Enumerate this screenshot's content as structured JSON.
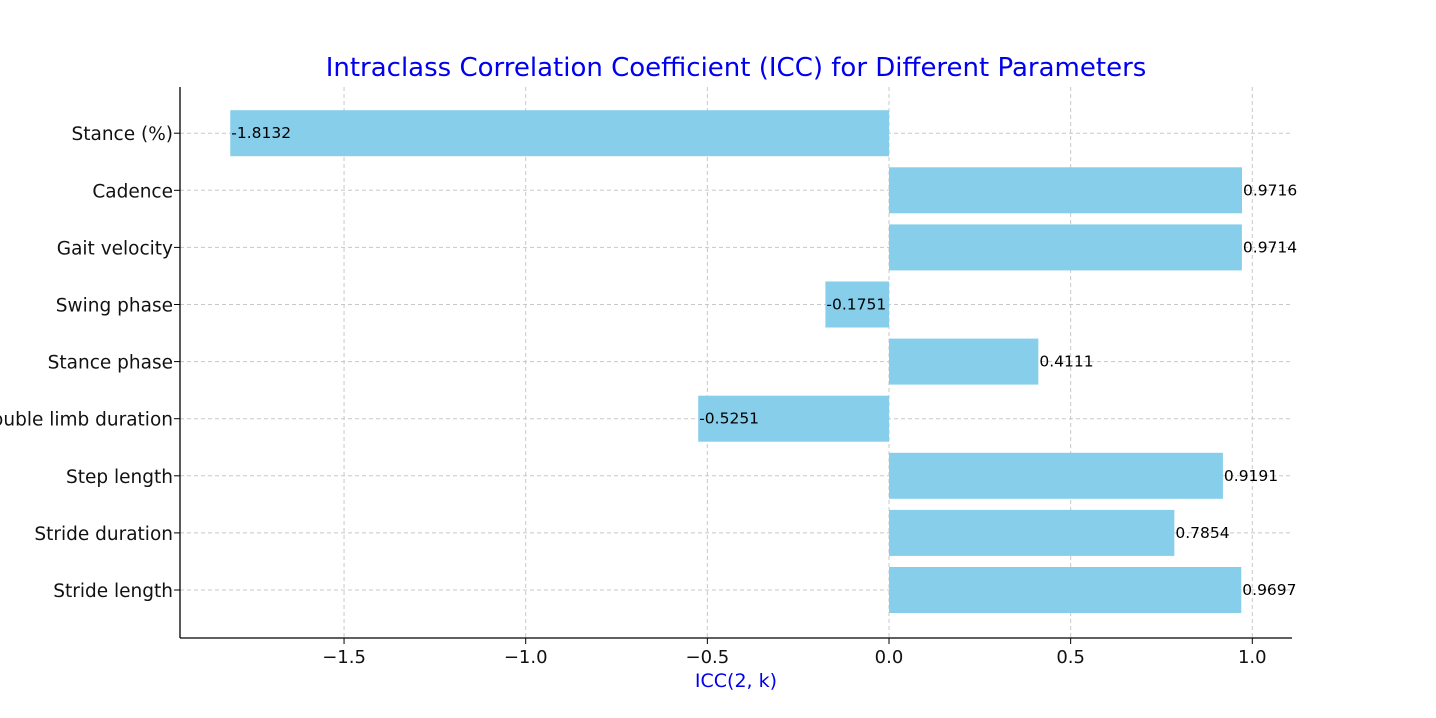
{
  "chart_data": {
    "type": "bar",
    "orientation": "horizontal",
    "title": "Intraclass Correlation Coefficient (ICC) for Different Parameters",
    "xlabel": "ICC(2, k)",
    "ylabel": "",
    "categories": [
      "Stride length",
      "Stride duration",
      "Step length",
      "Double limb duration",
      "Stance phase",
      "Swing phase",
      "Gait velocity",
      "Cadence",
      "Stance (%)"
    ],
    "values": [
      0.9697,
      0.7854,
      0.9191,
      -0.5251,
      0.4111,
      -0.1751,
      0.9714,
      0.9716,
      -1.8132
    ],
    "data_labels": [
      "0.9697",
      "0.7854",
      "0.9191",
      "-0.5251",
      "0.4111",
      "-0.1751",
      "0.9714",
      "0.9716",
      "-1.8132"
    ],
    "xticks": [
      -1.5,
      -1.0,
      -0.5,
      0.0,
      0.5,
      1.0
    ],
    "xtick_labels": [
      "−1.5",
      "−1.0",
      "−0.5",
      "0.0",
      "0.5",
      "1.0"
    ],
    "xlim": [
      -1.9039,
      1.1169
    ],
    "grid": true,
    "colors": {
      "bar": "#87ceeb",
      "title": "#0000ee",
      "xlabel": "#0000ee"
    }
  }
}
